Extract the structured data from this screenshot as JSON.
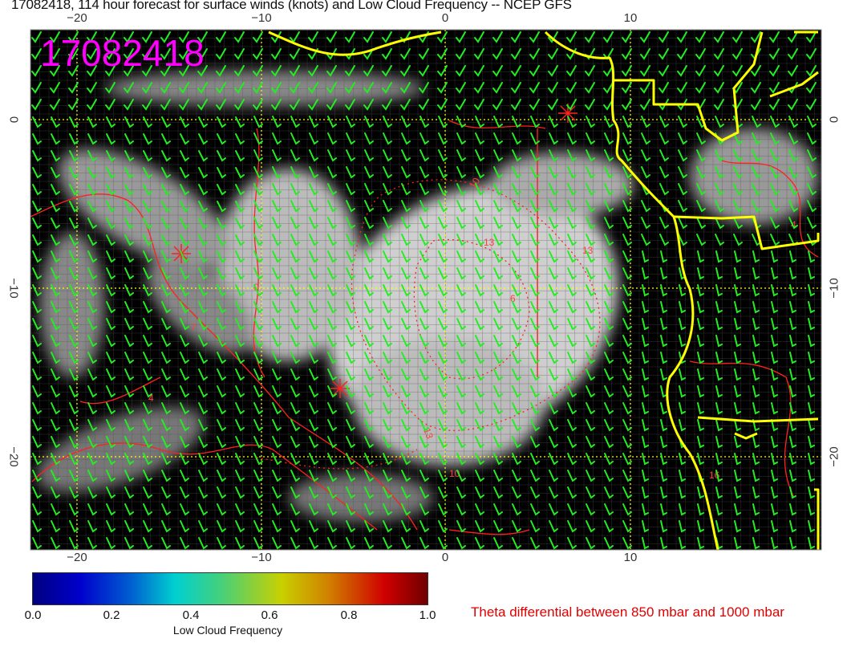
{
  "title": "17082418, 114 hour forecast for surface winds (knots) and Low Cloud Frequency -- NCEP GFS",
  "stamp": "17082418",
  "x_axis_ticks": [
    "−20",
    "−10",
    "0",
    "10"
  ],
  "y_axis_ticks": [
    "0",
    "−10",
    "−20"
  ],
  "contour_labels": [
    "10",
    "13",
    "13",
    "6",
    "13",
    "10",
    "0",
    "7",
    "4",
    "4",
    "16"
  ],
  "colorbar": {
    "label": "Low Cloud Frequency",
    "ticks": [
      "0.0",
      "0.2",
      "0.4",
      "0.6",
      "0.8",
      "1.0"
    ],
    "range": [
      0,
      1
    ],
    "colors": [
      "#000080",
      "#0000cc",
      "#00d0d0",
      "#c8d000",
      "#d00000",
      "#700000"
    ]
  },
  "legend_text": "Theta differential between 850 mbar and 1000 mbar",
  "colors": {
    "wind_barbs": "#22ee22",
    "coastline": "#ffff00",
    "theta_contours": "#ff2020",
    "stamp": "#ff00ff",
    "grid": "#ffff00"
  }
}
